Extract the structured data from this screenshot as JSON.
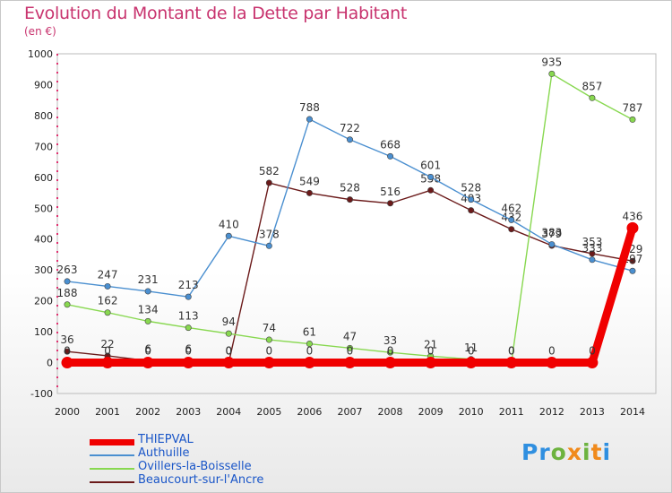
{
  "title": "Evolution du Montant de la Dette par Habitant",
  "unit": "(en €)",
  "logo": {
    "text": "Proxiti"
  },
  "chart_data": {
    "type": "line",
    "title": "Evolution du Montant de la Dette par Habitant",
    "ylabel": "(en €)",
    "xlabel": "",
    "categories": [
      "2000",
      "2001",
      "2002",
      "2003",
      "2004",
      "2005",
      "2006",
      "2007",
      "2008",
      "2009",
      "2010",
      "2011",
      "2012",
      "2013",
      "2014"
    ],
    "ylim": [
      -100,
      1000
    ],
    "yticks": [
      -100,
      0,
      100,
      200,
      300,
      400,
      500,
      600,
      700,
      800,
      900,
      1000
    ],
    "grid": false,
    "legend_position": "bottom-left",
    "series": [
      {
        "name": "Beaucourt-sur-l'Ancre",
        "color": "#6b1a1a",
        "values": [
          36,
          22,
          6,
          6,
          0,
          582,
          549,
          528,
          516,
          558,
          493,
          432,
          379,
          353,
          329
        ],
        "labels": [
          "36",
          "22",
          "6",
          "6",
          "0",
          "582",
          "549",
          "528",
          "516",
          "558",
          "493",
          "432",
          "379",
          "353",
          "329"
        ]
      },
      {
        "name": "Ovillers-la-Boisselle",
        "color": "#88d850",
        "values": [
          188,
          162,
          134,
          113,
          94,
          74,
          61,
          47,
          33,
          21,
          11,
          0,
          935,
          857,
          787
        ],
        "labels": [
          "188",
          "162",
          "134",
          "113",
          "94",
          "74",
          "61",
          "47",
          "33",
          "21",
          "11",
          "0",
          "935",
          "857",
          "787"
        ]
      },
      {
        "name": "Authuille",
        "color": "#4a8fd0",
        "values": [
          263,
          247,
          231,
          213,
          410,
          378,
          788,
          722,
          668,
          601,
          528,
          462,
          383,
          333,
          297
        ],
        "labels": [
          "263",
          "247",
          "231",
          "213",
          "410",
          "378",
          "788",
          "722",
          "668",
          "601",
          "528",
          "462",
          "383",
          "333",
          "297"
        ]
      },
      {
        "name": "THIEPVAL",
        "color": "#f00000",
        "values": [
          0,
          0,
          0,
          0,
          0,
          0,
          0,
          0,
          0,
          0,
          0,
          0,
          0,
          0,
          436
        ],
        "labels": [
          "0",
          "0",
          "0",
          "0",
          "0",
          "0",
          "0",
          "0",
          "0",
          "0",
          "0",
          "0",
          "0",
          "0",
          "436"
        ]
      }
    ],
    "legend_order": [
      "THIEPVAL",
      "Authuille",
      "Ovillers-la-Boisselle",
      "Beaucourt-sur-l'Ancre"
    ]
  }
}
